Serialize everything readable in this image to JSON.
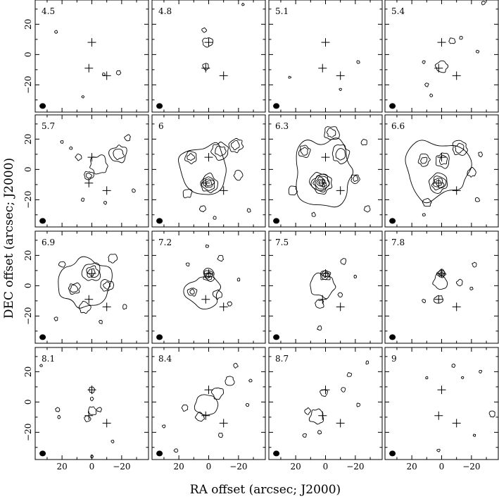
{
  "chart_data": {
    "type": "contour",
    "layout": "4x4 channel map grid",
    "xlabel": "RA offset (arcsec; J2000)",
    "ylabel": "DEC offset (arcsec; J2000)",
    "x_axis_reversed": true,
    "xlim": [
      38,
      -38
    ],
    "ylim": [
      -38,
      36
    ],
    "x_ticks": [
      20,
      0,
      -20
    ],
    "x_tick_labels": [
      "20",
      "0",
      "−20"
    ],
    "y_ticks": [
      20,
      0,
      -20
    ],
    "y_tick_labels": [
      "20",
      "0",
      "−20"
    ],
    "beam": {
      "ra": 33,
      "dec": -34,
      "description": "filled black ellipse, lower-left"
    },
    "markers": [
      {
        "type": "cross",
        "ra": 0,
        "dec": 8
      },
      {
        "type": "cross",
        "ra": 2,
        "dec": -9
      },
      {
        "type": "cross",
        "ra": -10,
        "dec": -14
      }
    ],
    "channels": [
      {
        "label": "4.5",
        "blobs": [
          {
            "ra": 24,
            "dec": 15,
            "r": 1,
            "levels": 1
          },
          {
            "ra": -18,
            "dec": -12,
            "r": 1.5,
            "levels": 1
          },
          {
            "ra": -8,
            "dec": -13,
            "r": 1,
            "levels": 1
          },
          {
            "ra": 6,
            "dec": -28,
            "r": 0.8,
            "levels": 1
          }
        ]
      },
      {
        "label": "4.8",
        "blobs": [
          {
            "ra": 1,
            "dec": 8,
            "r": 3.5,
            "levels": 1
          },
          {
            "ra": 3,
            "dec": 16,
            "r": 1.5,
            "levels": 1
          },
          {
            "ra": 2,
            "dec": -8,
            "r": 2,
            "levels": 1
          },
          {
            "ra": -23,
            "dec": 33,
            "r": 0.8,
            "levels": 1
          }
        ]
      },
      {
        "label": "5.1",
        "blobs": [
          {
            "ra": 24,
            "dec": -15,
            "r": 0.8,
            "levels": 1
          },
          {
            "ra": -22,
            "dec": -5,
            "r": 1,
            "levels": 1
          },
          {
            "ra": -10,
            "dec": -23,
            "r": 0.8,
            "levels": 1
          }
        ]
      },
      {
        "label": "5.4",
        "blobs": [
          {
            "ra": 0,
            "dec": -8,
            "r": 4,
            "levels": 1
          },
          {
            "ra": -7,
            "dec": 9,
            "r": 2,
            "levels": 1
          },
          {
            "ra": -24,
            "dec": 2,
            "r": 1,
            "levels": 1
          },
          {
            "ra": -13,
            "dec": 11,
            "r": 1,
            "levels": 1
          },
          {
            "ra": 10,
            "dec": -20,
            "r": 1.2,
            "levels": 1
          },
          {
            "ra": 7,
            "dec": -27,
            "r": 1,
            "levels": 1
          },
          {
            "ra": -28,
            "dec": 34,
            "r": 1.2,
            "levels": 1
          },
          {
            "ra": 12,
            "dec": -5,
            "r": 1,
            "levels": 1
          }
        ]
      },
      {
        "label": "5.7",
        "blobs": [
          {
            "ra": -5,
            "dec": 3,
            "r": 6,
            "levels": 1
          },
          {
            "ra": -18,
            "dec": 10,
            "r": 6,
            "levels": 2
          },
          {
            "ra": 2,
            "dec": -4,
            "r": 3,
            "levels": 2
          },
          {
            "ra": 9,
            "dec": 8,
            "r": 2,
            "levels": 1
          },
          {
            "ra": 14,
            "dec": 14,
            "r": 1,
            "levels": 1
          },
          {
            "ra": -24,
            "dec": 21,
            "r": 2,
            "levels": 1
          },
          {
            "ra": -28,
            "dec": -14,
            "r": 1.2,
            "levels": 1
          },
          {
            "ra": -9,
            "dec": -22,
            "r": 1,
            "levels": 1
          },
          {
            "ra": 6,
            "dec": -20,
            "r": 1,
            "levels": 1
          },
          {
            "ra": 20,
            "dec": 18,
            "r": 1,
            "levels": 1
          }
        ]
      },
      {
        "label": "6",
        "blobs": [
          {
            "ra": 3,
            "dec": 0,
            "r": 18,
            "levels": 1
          },
          {
            "ra": 0,
            "dec": -9,
            "r": 6,
            "levels": 4
          },
          {
            "ra": -8,
            "dec": 12,
            "r": 6,
            "levels": 2
          },
          {
            "ra": 12,
            "dec": 8,
            "r": 4,
            "levels": 2
          },
          {
            "ra": -18,
            "dec": 16,
            "r": 5,
            "levels": 2
          },
          {
            "ra": -20,
            "dec": -4,
            "r": 3,
            "levels": 1
          },
          {
            "ra": 14,
            "dec": -16,
            "r": 3,
            "levels": 1
          },
          {
            "ra": 4,
            "dec": -26,
            "r": 2,
            "levels": 1
          },
          {
            "ra": -27,
            "dec": -27,
            "r": 1.2,
            "levels": 1
          },
          {
            "ra": -4,
            "dec": -32,
            "r": 1,
            "levels": 1
          }
        ]
      },
      {
        "label": "6.3",
        "blobs": [
          {
            "ra": 2,
            "dec": -2,
            "r": 22,
            "levels": 1
          },
          {
            "ra": 3,
            "dec": -9,
            "r": 7,
            "levels": 6
          },
          {
            "ra": -10,
            "dec": 10,
            "r": 6,
            "levels": 2
          },
          {
            "ra": 14,
            "dec": 12,
            "r": 4,
            "levels": 2
          },
          {
            "ra": -4,
            "dec": 24,
            "r": 5,
            "levels": 2
          },
          {
            "ra": -20,
            "dec": -6,
            "r": 3,
            "levels": 2
          },
          {
            "ra": 22,
            "dec": -14,
            "r": 3,
            "levels": 1
          },
          {
            "ra": -26,
            "dec": 18,
            "r": 2,
            "levels": 1
          },
          {
            "ra": -28,
            "dec": -26,
            "r": 2,
            "levels": 1
          },
          {
            "ra": 8,
            "dec": -30,
            "r": 1.5,
            "levels": 1
          }
        ]
      },
      {
        "label": "6.6",
        "blobs": [
          {
            "ra": 3,
            "dec": 0,
            "r": 21,
            "levels": 1
          },
          {
            "ra": 2,
            "dec": -9,
            "r": 6,
            "levels": 4
          },
          {
            "ra": -1,
            "dec": 6,
            "r": 5,
            "levels": 2
          },
          {
            "ra": -12,
            "dec": 14,
            "r": 5,
            "levels": 2
          },
          {
            "ra": 12,
            "dec": 6,
            "r": 4,
            "levels": 2
          },
          {
            "ra": -20,
            "dec": -2,
            "r": 3,
            "levels": 1
          },
          {
            "ra": 10,
            "dec": -22,
            "r": 3,
            "levels": 1
          },
          {
            "ra": -24,
            "dec": -20,
            "r": 1.5,
            "levels": 1
          },
          {
            "ra": -26,
            "dec": 10,
            "r": 1.5,
            "levels": 1
          },
          {
            "ra": 12,
            "dec": -30,
            "r": 1,
            "levels": 1
          }
        ]
      },
      {
        "label": "6.9",
        "blobs": [
          {
            "ra": 5,
            "dec": 2,
            "r": 18,
            "levels": 1
          },
          {
            "ra": 0,
            "dec": 9,
            "r": 6,
            "levels": 3
          },
          {
            "ra": -10,
            "dec": 0,
            "r": 4,
            "levels": 2
          },
          {
            "ra": 12,
            "dec": -2,
            "r": 4,
            "levels": 2
          },
          {
            "ra": 5,
            "dec": -14,
            "r": 4,
            "levels": 1
          },
          {
            "ra": -14,
            "dec": 18,
            "r": 3,
            "levels": 1
          },
          {
            "ra": 20,
            "dec": 14,
            "r": 2,
            "levels": 1
          },
          {
            "ra": -22,
            "dec": -14,
            "r": 1.5,
            "levels": 1
          },
          {
            "ra": 24,
            "dec": -22,
            "r": 1.2,
            "levels": 1
          },
          {
            "ra": -6,
            "dec": -24,
            "r": 1.2,
            "levels": 1
          }
        ]
      },
      {
        "label": "7.2",
        "blobs": [
          {
            "ra": 4,
            "dec": -4,
            "r": 11,
            "levels": 1
          },
          {
            "ra": 0,
            "dec": 7,
            "r": 4,
            "levels": 4
          },
          {
            "ra": 11,
            "dec": -4,
            "r": 3,
            "levels": 2
          },
          {
            "ra": -6,
            "dec": -6,
            "r": 3,
            "levels": 1
          },
          {
            "ra": -8,
            "dec": 18,
            "r": 2,
            "levels": 1
          },
          {
            "ra": -14,
            "dec": -12,
            "r": 1.5,
            "levels": 1
          },
          {
            "ra": 14,
            "dec": 14,
            "r": 1.2,
            "levels": 1
          },
          {
            "ra": -20,
            "dec": 4,
            "r": 1,
            "levels": 1
          },
          {
            "ra": 1,
            "dec": 26,
            "r": 1,
            "levels": 1
          }
        ]
      },
      {
        "label": "7.5",
        "blobs": [
          {
            "ra": 2,
            "dec": 0,
            "r": 8,
            "levels": 1
          },
          {
            "ra": 0,
            "dec": 7,
            "r": 4,
            "levels": 3
          },
          {
            "ra": 4,
            "dec": -12,
            "r": 3,
            "levels": 1
          },
          {
            "ra": -12,
            "dec": 16,
            "r": 2,
            "levels": 1
          },
          {
            "ra": 4,
            "dec": -28,
            "r": 1.5,
            "levels": 1
          },
          {
            "ra": -10,
            "dec": -6,
            "r": 1.5,
            "levels": 1
          },
          {
            "ra": -20,
            "dec": 6,
            "r": 1,
            "levels": 1
          }
        ]
      },
      {
        "label": "7.8",
        "blobs": [
          {
            "ra": 1,
            "dec": 3,
            "r": 5,
            "levels": 1
          },
          {
            "ra": 0,
            "dec": 8,
            "r": 3,
            "levels": 3
          },
          {
            "ra": 2,
            "dec": -9,
            "r": 3,
            "levels": 1
          },
          {
            "ra": -12,
            "dec": 2,
            "r": 2,
            "levels": 1
          },
          {
            "ra": -22,
            "dec": 14,
            "r": 1.5,
            "levels": 1
          },
          {
            "ra": 12,
            "dec": -10,
            "r": 1.2,
            "levels": 1
          },
          {
            "ra": -20,
            "dec": -2,
            "r": 1,
            "levels": 1
          }
        ]
      },
      {
        "label": "8.1",
        "blobs": [
          {
            "ra": 0,
            "dec": 8,
            "r": 2,
            "levels": 1
          },
          {
            "ra": 0,
            "dec": -6,
            "r": 3,
            "levels": 1
          },
          {
            "ra": 3,
            "dec": -11,
            "r": 2,
            "levels": 1
          },
          {
            "ra": -5,
            "dec": -5,
            "r": 1.5,
            "levels": 1
          },
          {
            "ra": 0,
            "dec": 2,
            "r": 1.2,
            "levels": 1
          },
          {
            "ra": 23,
            "dec": -5,
            "r": 1.5,
            "levels": 1
          },
          {
            "ra": 22,
            "dec": -10,
            "r": 1,
            "levels": 1
          },
          {
            "ra": 0,
            "dec": -36,
            "r": 1,
            "levels": 1
          },
          {
            "ra": -14,
            "dec": -26,
            "r": 1,
            "levels": 1
          },
          {
            "ra": 34,
            "dec": 24,
            "r": 0.8,
            "levels": 1
          }
        ]
      },
      {
        "label": "8.4",
        "blobs": [
          {
            "ra": 2,
            "dec": -2,
            "r": 8,
            "levels": 1
          },
          {
            "ra": -6,
            "dec": 6,
            "r": 4,
            "levels": 1
          },
          {
            "ra": -14,
            "dec": 14,
            "r": 3,
            "levels": 1
          },
          {
            "ra": 6,
            "dec": -10,
            "r": 3,
            "levels": 1
          },
          {
            "ra": -18,
            "dec": 24,
            "r": 1.5,
            "levels": 1
          },
          {
            "ra": 16,
            "dec": -4,
            "r": 2,
            "levels": 1
          },
          {
            "ra": -8,
            "dec": -22,
            "r": 1.5,
            "levels": 1
          },
          {
            "ra": 22,
            "dec": -32,
            "r": 1.2,
            "levels": 1
          },
          {
            "ra": -26,
            "dec": -2,
            "r": 1,
            "levels": 1
          },
          {
            "ra": 30,
            "dec": -16,
            "r": 1,
            "levels": 1
          },
          {
            "ra": -28,
            "dec": 14,
            "r": 1,
            "levels": 1
          }
        ]
      },
      {
        "label": "8.7",
        "blobs": [
          {
            "ra": 6,
            "dec": -10,
            "r": 5,
            "levels": 1
          },
          {
            "ra": 1,
            "dec": 6,
            "r": 2.5,
            "levels": 1
          },
          {
            "ra": 12,
            "dec": -6,
            "r": 2,
            "levels": 1
          },
          {
            "ra": -12,
            "dec": 8,
            "r": 1.5,
            "levels": 1
          },
          {
            "ra": -16,
            "dec": 18,
            "r": 1.5,
            "levels": 1
          },
          {
            "ra": -22,
            "dec": -2,
            "r": 1.2,
            "levels": 1
          },
          {
            "ra": 14,
            "dec": -22,
            "r": 1.2,
            "levels": 1
          },
          {
            "ra": 4,
            "dec": -20,
            "r": 1.2,
            "levels": 1
          },
          {
            "ra": -28,
            "dec": 26,
            "r": 1,
            "levels": 1
          }
        ]
      },
      {
        "label": "9",
        "blobs": [
          {
            "ra": 10,
            "dec": 16,
            "r": 0.8,
            "levels": 1
          },
          {
            "ra": -8,
            "dec": 24,
            "r": 1.2,
            "levels": 1
          },
          {
            "ra": -14,
            "dec": 16,
            "r": 0.8,
            "levels": 1
          },
          {
            "ra": -34,
            "dec": -8,
            "r": 2,
            "levels": 1
          },
          {
            "ra": 2,
            "dec": -32,
            "r": 1,
            "levels": 1
          },
          {
            "ra": -22,
            "dec": -22,
            "r": 0.8,
            "levels": 1
          },
          {
            "ra": -26,
            "dec": 20,
            "r": 1,
            "levels": 1
          }
        ]
      }
    ]
  }
}
